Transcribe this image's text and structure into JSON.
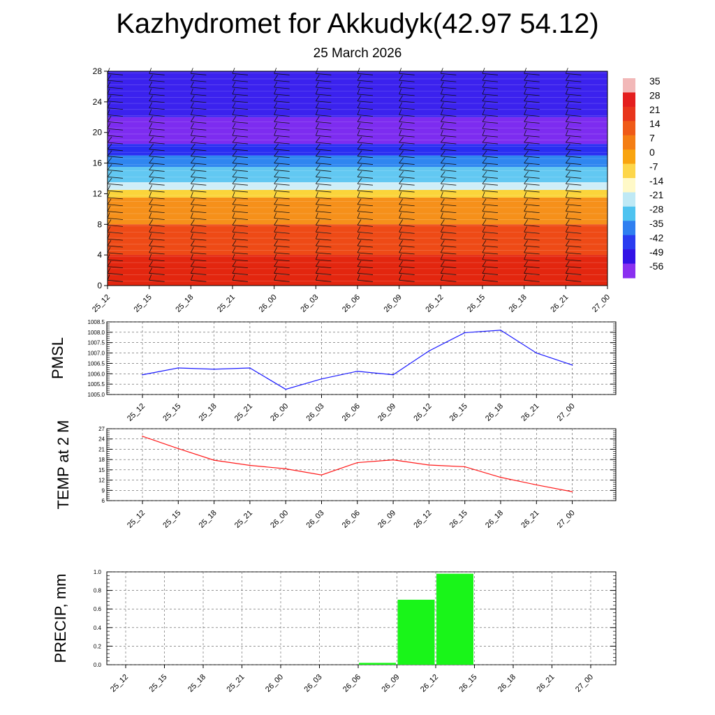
{
  "title": "Kazhydromet for Akkudyk(42.97 54.12)",
  "subtitle": "25 March 2026",
  "chart_data": [
    {
      "type": "heatmap",
      "name": "vertical-section",
      "ylim": [
        0,
        28
      ],
      "yticks": [
        0,
        4,
        8,
        12,
        16,
        20,
        24,
        28
      ],
      "x_labels": [
        "25_12",
        "25_15",
        "25_18",
        "25_21",
        "26_00",
        "26_03",
        "26_06",
        "26_09",
        "26_12",
        "26_15",
        "26_18",
        "26_21",
        "27_00"
      ],
      "colorbar": {
        "labels": [
          "35",
          "28",
          "21",
          "14",
          "7",
          "0",
          "-7",
          "-14",
          "-21",
          "-28",
          "-35",
          "-42",
          "-49",
          "-56"
        ],
        "colors": [
          "#f2b8b8",
          "#e41e1e",
          "#e8351c",
          "#ef5a18",
          "#f47e14",
          "#f9a410",
          "#fdd64a",
          "#fff9c8",
          "#bfe9f5",
          "#4fc3f0",
          "#2f7ff0",
          "#2a3cf0",
          "#3312e6",
          "#8a30f0"
        ]
      },
      "temperature_bands": [
        {
          "from": 0,
          "to": 4,
          "color": "#e3260f"
        },
        {
          "from": 4,
          "to": 8,
          "color": "#ee4a16"
        },
        {
          "from": 8,
          "to": 11.5,
          "color": "#f6901a"
        },
        {
          "from": 11.5,
          "to": 12.5,
          "color": "#fbd43a"
        },
        {
          "from": 12.5,
          "to": 13.5,
          "color": "#cfeef8"
        },
        {
          "from": 13.5,
          "to": 15.5,
          "color": "#62c8f2"
        },
        {
          "from": 15.5,
          "to": 17,
          "color": "#2f86f0"
        },
        {
          "from": 17,
          "to": 18.5,
          "color": "#2a2ef2"
        },
        {
          "from": 18.5,
          "to": 22,
          "color": "#7d2cf0"
        },
        {
          "from": 22,
          "to": 28,
          "color": "#3b22ee"
        }
      ]
    },
    {
      "type": "line",
      "name": "pmsl",
      "ylabel": "PMSL",
      "categories": [
        "25_12",
        "25_15",
        "25_18",
        "25_21",
        "26_00",
        "26_03",
        "26_06",
        "26_09",
        "26_12",
        "26_15",
        "26_18",
        "26_21",
        "27_00"
      ],
      "values": [
        1005.95,
        1006.28,
        1006.22,
        1006.28,
        1005.25,
        1005.75,
        1006.12,
        1005.95,
        1007.1,
        1007.98,
        1008.1,
        1007.0,
        1006.42
      ],
      "ylim": [
        1005.0,
        1008.5
      ],
      "yticks": [
        "1005.0",
        "1005.5",
        "1006.0",
        "1006.5",
        "1007.0",
        "1007.5",
        "1008.0",
        "1008.5"
      ],
      "color": "#1a1aff"
    },
    {
      "type": "line",
      "name": "temp2m",
      "ylabel": "TEMP at 2 M",
      "categories": [
        "25_12",
        "25_15",
        "25_18",
        "25_21",
        "26_00",
        "26_03",
        "26_06",
        "26_09",
        "26_12",
        "26_15",
        "26_18",
        "26_21",
        "27_00"
      ],
      "values": [
        24.8,
        21.2,
        17.8,
        16.3,
        15.3,
        13.5,
        17.1,
        17.9,
        16.4,
        15.9,
        12.8,
        10.6,
        8.6
      ],
      "ylim": [
        6,
        27
      ],
      "yticks": [
        "6",
        "9",
        "12",
        "15",
        "18",
        "21",
        "24",
        "27"
      ],
      "color": "#ff1a1a"
    },
    {
      "type": "bar",
      "name": "precip",
      "ylabel": "PRECIP, mm",
      "categories": [
        "25_12",
        "25_15",
        "25_18",
        "25_21",
        "26_00",
        "26_03",
        "26_06",
        "26_09",
        "26_12",
        "26_15",
        "26_18",
        "26_21",
        "27_00"
      ],
      "values": [
        0,
        0,
        0,
        0,
        0,
        0,
        0,
        0.02,
        0.7,
        0.98,
        0,
        0,
        0
      ],
      "ylim": [
        0,
        1.0
      ],
      "yticks": [
        "0.0",
        "0.2",
        "0.4",
        "0.6",
        "0.8",
        "1.0"
      ],
      "color": "#19f519"
    }
  ]
}
